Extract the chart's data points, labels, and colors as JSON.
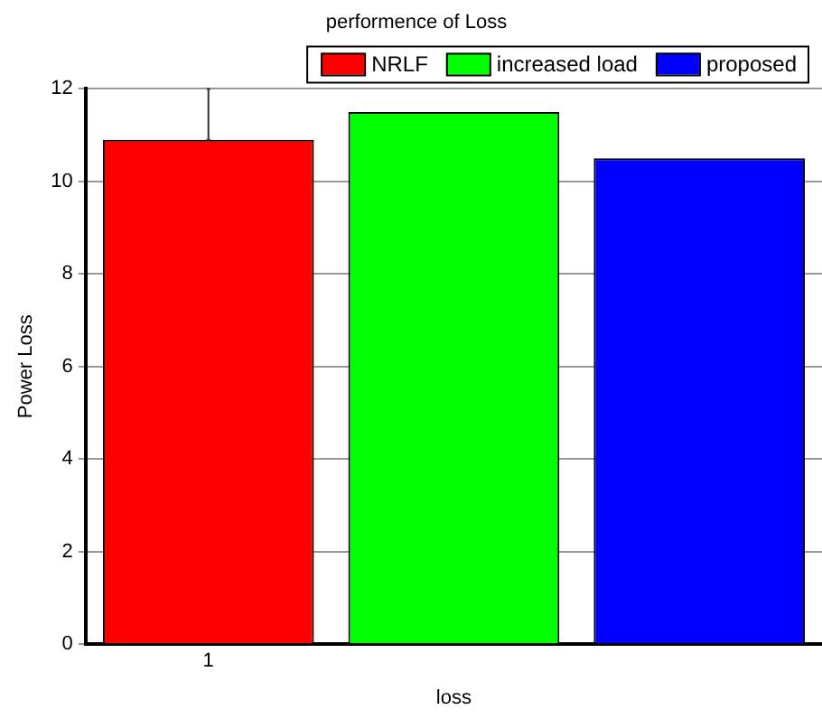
{
  "chart_data": {
    "type": "bar",
    "title": "performence of Loss",
    "xlabel": "loss",
    "ylabel": "Power Loss",
    "categories": [
      "1",
      null,
      null
    ],
    "series": [
      {
        "name": "NRLF",
        "color": "#ff0000",
        "values": [
          10.9,
          null,
          null
        ],
        "errors": [
          [
            10.9,
            12
          ],
          null,
          null
        ]
      },
      {
        "name": "increased load",
        "color": "#00ff00",
        "values": [
          null,
          11.5,
          null
        ]
      },
      {
        "name": "proposed",
        "color": "#0000ff",
        "values": [
          null,
          null,
          10.5
        ]
      }
    ],
    "ylim": [
      0,
      12
    ],
    "yticks": [
      0,
      2,
      4,
      6,
      8,
      10,
      12
    ],
    "grid": "y",
    "legend": "top right"
  }
}
